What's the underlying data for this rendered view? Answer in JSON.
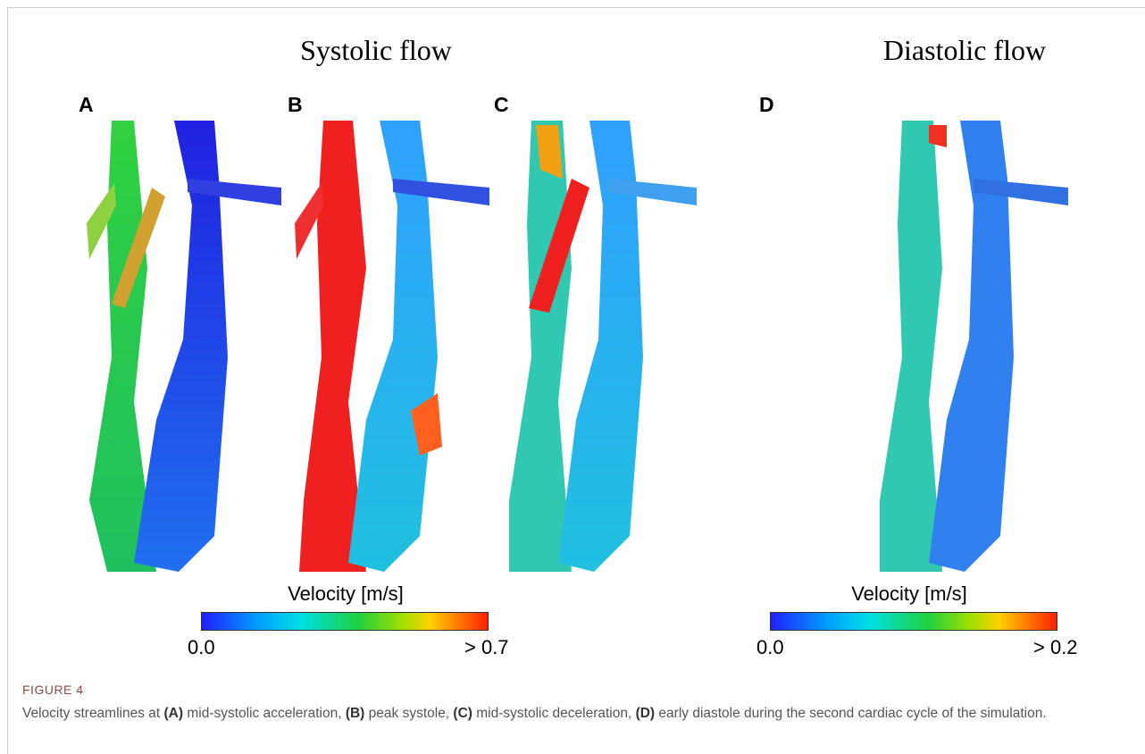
{
  "figure": {
    "headings": [
      "Systolic flow",
      "Diastolic flow"
    ],
    "panels": [
      "A",
      "B",
      "C",
      "D"
    ],
    "colorbars": [
      {
        "title": "Velocity [m/s]",
        "min": "0.0",
        "max": "> 0.7"
      },
      {
        "title": "Velocity [m/s]",
        "min": "0.0",
        "max": "> 0.2"
      }
    ]
  },
  "caption": {
    "label": "FIGURE 4",
    "parts": [
      {
        "text": "Velocity streamlines at ",
        "bold": false
      },
      {
        "text": "(A)",
        "bold": true
      },
      {
        "text": " mid-systolic acceleration, ",
        "bold": false
      },
      {
        "text": "(B)",
        "bold": true
      },
      {
        "text": " peak systole, ",
        "bold": false
      },
      {
        "text": "(C)",
        "bold": true
      },
      {
        "text": " mid-systolic deceleration, ",
        "bold": false
      },
      {
        "text": "(D)",
        "bold": true
      },
      {
        "text": " early diastole during the second cardiac cycle of the simulation.",
        "bold": false
      }
    ]
  }
}
